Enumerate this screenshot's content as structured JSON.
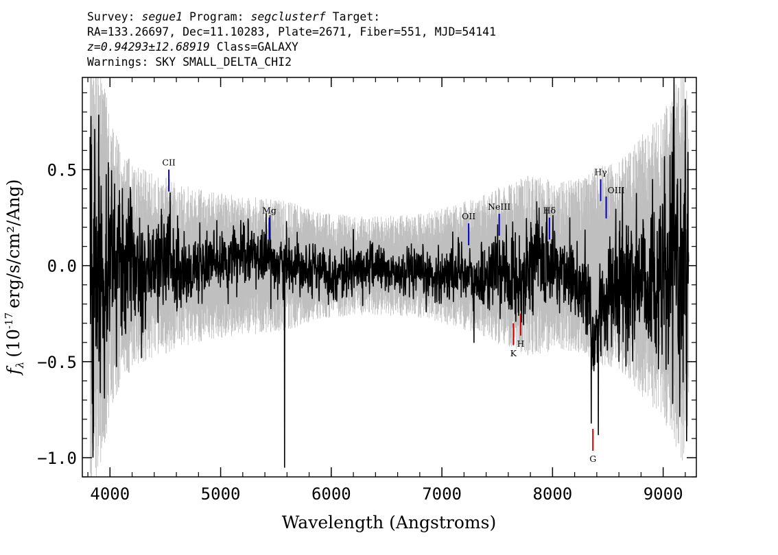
{
  "header": {
    "survey_label": "Survey:",
    "survey_value": "segue1",
    "program_label": "Program:",
    "program_value": "segclusterf",
    "target_label": "Target:",
    "line2": "RA=133.26697, Dec=11.10283, Plate=2671, Fiber=551, MJD=54141",
    "redshift": "z=0.94293±12.68919",
    "class_text": "Class=GALAXY",
    "warnings": "Warnings: SKY SMALL_DELTA_CHI2"
  },
  "colors": {
    "flux": "#000000",
    "error_band": "#bfbfbf",
    "emission_marker": "#0000cc",
    "absorption_marker": "#cc0000"
  },
  "chart_data": {
    "type": "line",
    "xlabel": "Wavelength (Angstroms)",
    "ylabel_prefix": "f",
    "ylabel_sub": "λ",
    "ylabel_rest": "(10",
    "ylabel_exp": "-17",
    "ylabel_units": "erg/s/cm²/Ang)",
    "xlim": [
      3750,
      9300
    ],
    "ylim": [
      -1.1,
      0.98
    ],
    "xticks": [
      4000,
      5000,
      6000,
      7000,
      8000,
      9000
    ],
    "xtick_labels": [
      "4000",
      "5000",
      "6000",
      "7000",
      "8000",
      "9000"
    ],
    "yticks": [
      -1.0,
      -0.5,
      0.0,
      0.5
    ],
    "ytick_labels": [
      "−1.0",
      "−0.5",
      "0.0",
      "0.5"
    ],
    "x_minor_step": 200,
    "y_minor_step": 0.1,
    "spectrum_range": [
      3820,
      9230
    ],
    "series": [
      {
        "role": "flux",
        "x": [
          3820,
          3900,
          4000,
          4100,
          4200,
          4300,
          4400,
          4500,
          4600,
          4700,
          4800,
          4900,
          5000,
          5200,
          5400,
          5580,
          5600,
          5800,
          6000,
          6200,
          6400,
          6600,
          6800,
          7000,
          7200,
          7300,
          7400,
          7500,
          7600,
          7700,
          7800,
          8000,
          8200,
          8340,
          8360,
          8400,
          8440,
          8600,
          8800,
          9000,
          9100,
          9230
        ],
        "y": [
          -0.05,
          0.0,
          0.05,
          0.0,
          0.02,
          0.0,
          -0.02,
          0.05,
          0.0,
          -0.05,
          0.0,
          0.02,
          0.0,
          0.05,
          0.05,
          0.0,
          0.02,
          0.0,
          -0.05,
          -0.03,
          0.0,
          -0.05,
          -0.05,
          -0.05,
          -0.02,
          -0.1,
          -0.05,
          -0.02,
          -0.05,
          -0.1,
          0.05,
          0.0,
          -0.05,
          -0.2,
          -0.5,
          -0.3,
          -0.2,
          -0.1,
          -0.05,
          -0.1,
          0.0,
          -0.05
        ],
        "noise": [
          0.55,
          0.4,
          0.3,
          0.25,
          0.2,
          0.18,
          0.17,
          0.18,
          0.16,
          0.14,
          0.12,
          0.12,
          0.11,
          0.1,
          0.1,
          0.1,
          0.09,
          0.08,
          0.08,
          0.08,
          0.08,
          0.08,
          0.08,
          0.09,
          0.1,
          0.1,
          0.11,
          0.12,
          0.13,
          0.14,
          0.15,
          0.15,
          0.15,
          0.17,
          0.2,
          0.2,
          0.2,
          0.2,
          0.25,
          0.3,
          0.35,
          0.4
        ],
        "spikes": [
          {
            "x": 5578,
            "y": -1.05
          },
          {
            "x": 8350,
            "y": -0.82
          },
          {
            "x": 8415,
            "y": -0.88
          },
          {
            "x": 7290,
            "y": -0.4
          },
          {
            "x": 3850,
            "y": -0.87
          },
          {
            "x": 3820,
            "y": 0.67
          }
        ]
      },
      {
        "role": "error",
        "x": [
          3820,
          3900,
          4000,
          4100,
          4200,
          4400,
          4600,
          4800,
          5000,
          5200,
          5400,
          5600,
          5800,
          6000,
          6400,
          6800,
          7000,
          7200,
          7400,
          7600,
          7800,
          8000,
          8200,
          8400,
          8600,
          8800,
          9000,
          9230
        ],
        "y": [
          0.95,
          0.8,
          0.6,
          0.45,
          0.4,
          0.35,
          0.33,
          0.3,
          0.28,
          0.27,
          0.26,
          0.25,
          0.22,
          0.2,
          0.19,
          0.2,
          0.22,
          0.25,
          0.28,
          0.32,
          0.35,
          0.33,
          0.33,
          0.38,
          0.4,
          0.5,
          0.6,
          0.8
        ]
      }
    ],
    "line_markers": [
      {
        "label": "CII",
        "x": 4532,
        "y": 0.5,
        "color": "blue",
        "pos": "above"
      },
      {
        "label": "Mg",
        "x": 5440,
        "y": 0.25,
        "color": "blue",
        "pos": "above"
      },
      {
        "label": "OII",
        "x": 7242,
        "y": 0.22,
        "color": "blue",
        "pos": "above"
      },
      {
        "label": "NeIII",
        "x": 7518,
        "y": 0.27,
        "color": "blue",
        "pos": "above"
      },
      {
        "label": "Hδ",
        "x": 7972,
        "y": 0.25,
        "color": "blue",
        "pos": "above"
      },
      {
        "label": "Hγ",
        "x": 8435,
        "y": 0.45,
        "color": "blue",
        "pos": "above"
      },
      {
        "label": "OIII",
        "x": 8485,
        "y": 0.36,
        "color": "blue",
        "pos": "right"
      },
      {
        "label": "K",
        "x": 7646,
        "y": -0.3,
        "color": "red",
        "pos": "below"
      },
      {
        "label": "H",
        "x": 7712,
        "y": -0.25,
        "color": "red",
        "pos": "below"
      },
      {
        "label": "G",
        "x": 8365,
        "y": -0.85,
        "color": "red",
        "pos": "below"
      }
    ]
  }
}
